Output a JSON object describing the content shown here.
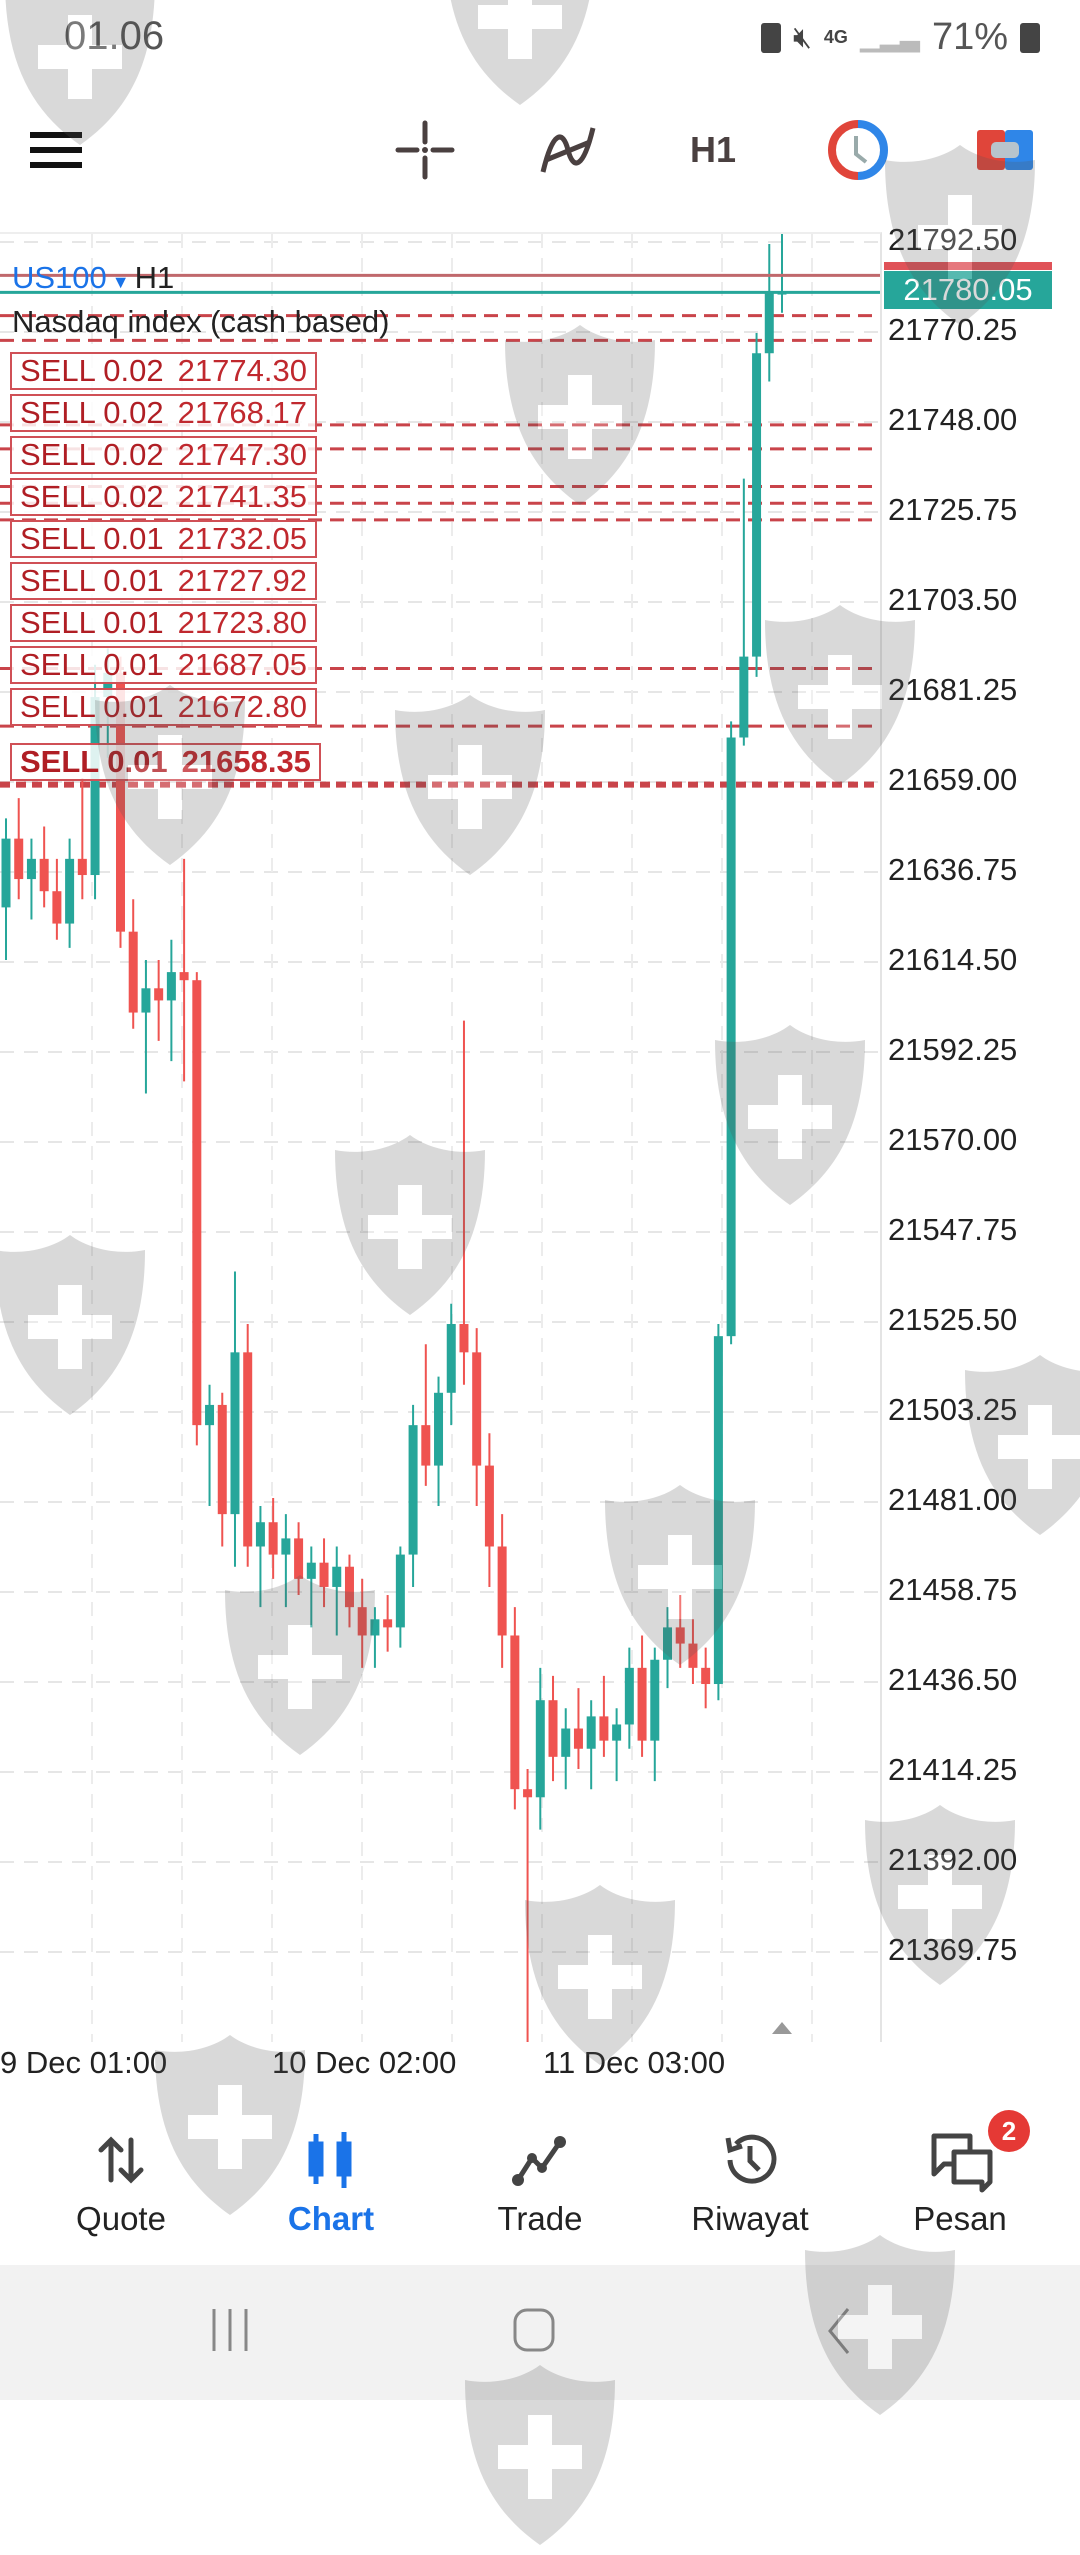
{
  "status_bar": {
    "time": "01.06",
    "network": "4G",
    "battery": "71%"
  },
  "toolbar": {
    "menu_icon": "hamburger-icon",
    "crosshair_icon": "crosshair-icon",
    "indicators_icon": "indicator-icon",
    "timeframe": "H1",
    "clock_icon": "clock-icon",
    "objects_icon": "objects-icon"
  },
  "chart": {
    "symbol": "US100",
    "timeframe": "H1",
    "description": "Nasdaq index (cash based)",
    "current_price": "21780.05",
    "colors": {
      "up": "#26a69a",
      "down": "#ef5350",
      "order_line": "#c9444a",
      "accent": "#1a73e8"
    }
  },
  "chart_data": {
    "type": "candlestick",
    "price_ticks": [
      "21792.50",
      "21770.25",
      "21748.00",
      "21725.75",
      "21703.50",
      "21681.25",
      "21659.00",
      "21636.75",
      "21614.50",
      "21592.25",
      "21570.00",
      "21547.75",
      "21525.50",
      "21503.25",
      "21481.00",
      "21458.75",
      "21436.50",
      "21414.25",
      "21392.00",
      "21369.75"
    ],
    "time_labels": [
      "9 Dec 01:00",
      "10 Dec 02:00",
      "11 Dec 03:00"
    ],
    "orders": [
      {
        "label": "SELL 0.02",
        "price": "21774.30"
      },
      {
        "label": "SELL 0.02",
        "price": "21768.17"
      },
      {
        "label": "SELL 0.02",
        "price": "21747.30"
      },
      {
        "label": "SELL 0.02",
        "price": "21741.35"
      },
      {
        "label": "SELL 0.01",
        "price": "21732.05"
      },
      {
        "label": "SELL 0.01",
        "price": "21727.92"
      },
      {
        "label": "SELL 0.01",
        "price": "21723.80"
      },
      {
        "label": "SELL 0.01",
        "price": "21687.05"
      },
      {
        "label": "SELL 0.01",
        "price": "21672.80"
      },
      {
        "label": "SELL 0.01",
        "price": "21658.35"
      }
    ],
    "ohlc": [
      [
        21628,
        21650,
        21615,
        21645
      ],
      [
        21645,
        21655,
        21630,
        21635
      ],
      [
        21635,
        21645,
        21625,
        21640
      ],
      [
        21640,
        21648,
        21628,
        21632
      ],
      [
        21632,
        21640,
        21620,
        21624
      ],
      [
        21624,
        21645,
        21618,
        21640
      ],
      [
        21640,
        21660,
        21630,
        21636
      ],
      [
        21636,
        21688,
        21630,
        21680
      ],
      [
        21680,
        21692,
        21665,
        21686
      ],
      [
        21686,
        21690,
        21618,
        21622
      ],
      [
        21622,
        21630,
        21598,
        21602
      ],
      [
        21602,
        21615,
        21582,
        21608
      ],
      [
        21608,
        21615,
        21595,
        21605
      ],
      [
        21605,
        21620,
        21590,
        21612
      ],
      [
        21612,
        21640,
        21585,
        21610
      ],
      [
        21610,
        21612,
        21495,
        21500
      ],
      [
        21500,
        21510,
        21480,
        21505
      ],
      [
        21505,
        21508,
        21470,
        21478
      ],
      [
        21478,
        21538,
        21465,
        21518
      ],
      [
        21518,
        21525,
        21465,
        21470
      ],
      [
        21470,
        21480,
        21455,
        21476
      ],
      [
        21476,
        21482,
        21462,
        21468
      ],
      [
        21468,
        21478,
        21455,
        21472
      ],
      [
        21472,
        21476,
        21458,
        21462
      ],
      [
        21462,
        21470,
        21450,
        21466
      ],
      [
        21466,
        21472,
        21455,
        21460
      ],
      [
        21460,
        21470,
        21448,
        21465
      ],
      [
        21465,
        21468,
        21450,
        21455
      ],
      [
        21455,
        21462,
        21440,
        21448
      ],
      [
        21448,
        21455,
        21440,
        21452
      ],
      [
        21452,
        21458,
        21444,
        21450
      ],
      [
        21450,
        21470,
        21445,
        21468
      ],
      [
        21468,
        21505,
        21460,
        21500
      ],
      [
        21500,
        21520,
        21485,
        21490
      ],
      [
        21490,
        21512,
        21480,
        21508
      ],
      [
        21508,
        21530,
        21500,
        21525
      ],
      [
        21525,
        21600,
        21510,
        21518
      ],
      [
        21518,
        21524,
        21480,
        21490
      ],
      [
        21490,
        21498,
        21460,
        21470
      ],
      [
        21470,
        21478,
        21440,
        21448
      ],
      [
        21448,
        21455,
        21405,
        21410
      ],
      [
        21410,
        21415,
        21345,
        21408
      ],
      [
        21408,
        21440,
        21400,
        21432
      ],
      [
        21432,
        21438,
        21412,
        21418
      ],
      [
        21418,
        21430,
        21410,
        21425
      ],
      [
        21425,
        21435,
        21415,
        21420
      ],
      [
        21420,
        21432,
        21410,
        21428
      ],
      [
        21428,
        21438,
        21418,
        21422
      ],
      [
        21422,
        21430,
        21412,
        21426
      ],
      [
        21426,
        21445,
        21420,
        21440
      ],
      [
        21440,
        21448,
        21418,
        21422
      ],
      [
        21422,
        21445,
        21412,
        21442
      ],
      [
        21442,
        21455,
        21435,
        21450
      ],
      [
        21450,
        21458,
        21440,
        21446
      ],
      [
        21446,
        21452,
        21436,
        21440
      ],
      [
        21440,
        21445,
        21430,
        21436
      ],
      [
        21436,
        21525,
        21432,
        21522
      ],
      [
        21522,
        21674,
        21520,
        21670
      ],
      [
        21670,
        21734,
        21668,
        21690
      ],
      [
        21690,
        21770,
        21685,
        21765
      ],
      [
        21765,
        21792,
        21758,
        21780
      ],
      [
        21780,
        21796,
        21775,
        21780
      ]
    ]
  },
  "bottom_nav": {
    "items": [
      {
        "label": "Quote",
        "icon": "quote-arrows-icon"
      },
      {
        "label": "Chart",
        "icon": "candlestick-icon",
        "active": true
      },
      {
        "label": "Trade",
        "icon": "trade-line-icon"
      },
      {
        "label": "Riwayat",
        "icon": "history-icon"
      },
      {
        "label": "Pesan",
        "icon": "messages-icon",
        "badge": "2"
      }
    ]
  }
}
